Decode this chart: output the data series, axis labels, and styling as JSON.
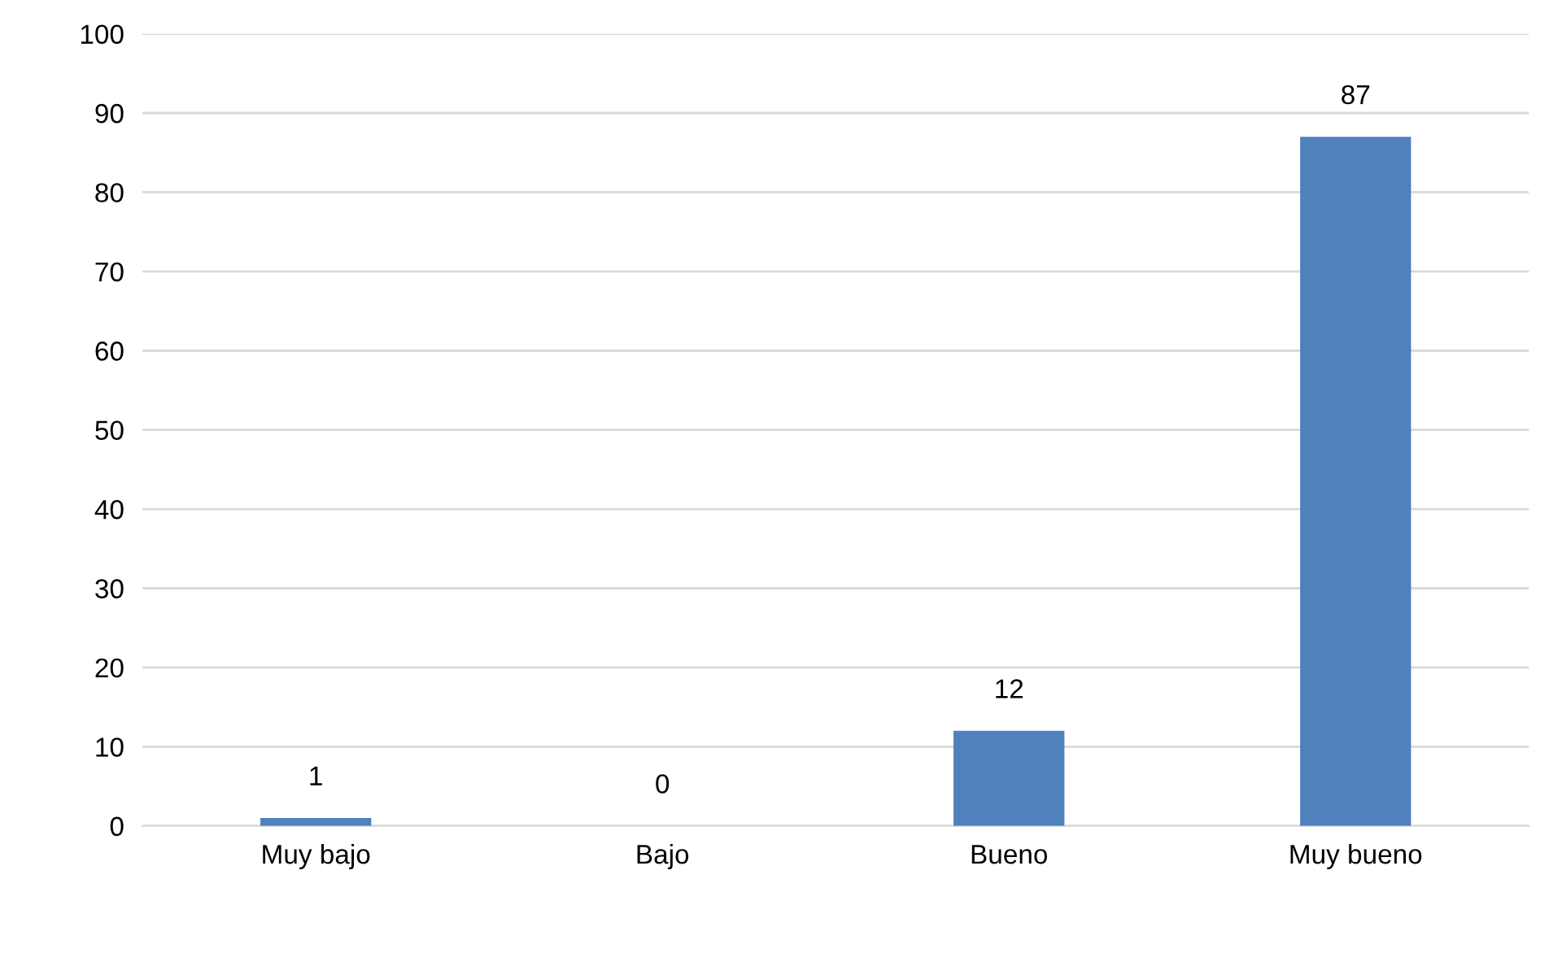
{
  "chart_data": {
    "type": "bar",
    "categories": [
      "Muy bajo",
      "Bajo",
      "Bueno",
      "Muy bueno"
    ],
    "values": [
      1,
      0,
      12,
      87
    ],
    "color": "#4f81bd",
    "ylim": [
      0,
      100
    ],
    "yticks": [
      0,
      10,
      20,
      30,
      40,
      50,
      60,
      70,
      80,
      90,
      100
    ],
    "grid": "y",
    "data_labels": true,
    "legend": false
  }
}
